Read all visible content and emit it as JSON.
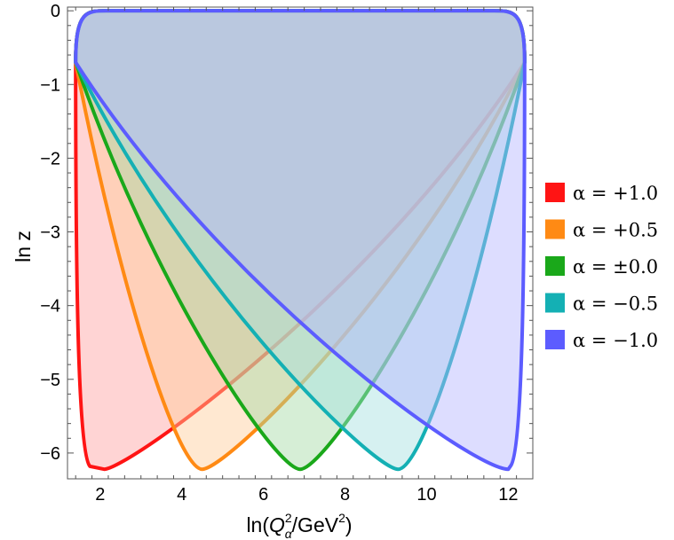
{
  "chart_data": {
    "type": "area",
    "title": "",
    "xlabel": "ln(Qα²/GeV²)",
    "xlabel_parts": {
      "pre": "ln(",
      "sym": "Q",
      "sup": "2",
      "sub": "α",
      "mid": "/GeV",
      "sup2": "2",
      "post": ")"
    },
    "ylabel": "ln z",
    "xlim": [
      1.2,
      12.6
    ],
    "ylim": [
      -6.35,
      0.05
    ],
    "xticks": [
      2,
      4,
      6,
      8,
      10,
      12
    ],
    "xtick_labels": [
      "2",
      "4",
      "6",
      "8",
      "10",
      "12"
    ],
    "yticks": [
      0,
      -1,
      -2,
      -3,
      -4,
      -5,
      -6
    ],
    "ytick_labels": [
      "0",
      "−1",
      "−2",
      "−3",
      "−4",
      "−5",
      "−6"
    ],
    "region": {
      "x_min": 1.4,
      "x_max": 12.4,
      "z_corner": -0.7,
      "z_floor": -6.2
    },
    "legend_position": "right",
    "series": [
      {
        "name": "α = +1.0",
        "label": "α = +1.0",
        "alpha": 1.0,
        "color": "#ff1414",
        "fill": "#ffa0a0",
        "vertex_x": 2.1,
        "vertex_z": -6.22
      },
      {
        "name": "α = +0.5",
        "label": "α = +0.5",
        "alpha": 0.5,
        "color": "#ff8a14",
        "fill": "#ffcc99",
        "vertex_x": 4.5,
        "vertex_z": -6.22
      },
      {
        "name": "α = ±0.0",
        "label": "α = ±0.0",
        "alpha": 0.0,
        "color": "#1aa81a",
        "fill": "#a3d9a3",
        "vertex_x": 6.9,
        "vertex_z": -6.22
      },
      {
        "name": "α = −0.5",
        "label": "α = −0.5",
        "alpha": -0.5,
        "color": "#14b0b4",
        "fill": "#a3e0e0",
        "vertex_x": 9.3,
        "vertex_z": -6.22
      },
      {
        "name": "α = −1.0",
        "label": "α = −1.0",
        "alpha": -1.0,
        "color": "#5c5cff",
        "fill": "#b3b3ff",
        "vertex_x": 11.7,
        "vertex_z": -6.22
      }
    ]
  }
}
